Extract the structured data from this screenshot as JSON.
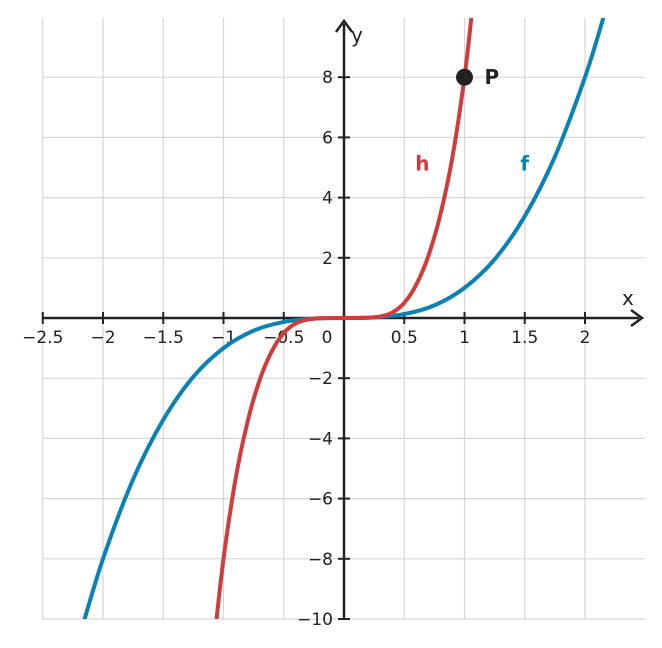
{
  "chart_data": {
    "type": "line",
    "xlabel": "x",
    "ylabel": "y",
    "xlim": [
      -2.5,
      2.5
    ],
    "ylim": [
      -10,
      10
    ],
    "grid": true,
    "x_ticks": [
      -2.5,
      -2,
      -1.5,
      -1,
      -0.5,
      0.5,
      1,
      1.5,
      2
    ],
    "x_tick_labels": [
      "−2.5",
      "−2",
      "−1.5",
      "−1",
      "−0.5",
      "0.5",
      "1",
      "1.5",
      "2"
    ],
    "y_ticks": [
      -10,
      -8,
      -6,
      -4,
      -2,
      2,
      4,
      6,
      8
    ],
    "y_tick_labels": [
      "−10",
      "−8",
      "−6",
      "−4",
      "−2",
      "2",
      "4",
      "6",
      "8"
    ],
    "origin_label": "0",
    "series": [
      {
        "name": "f",
        "color": "#0a82b4",
        "x": [
          -2.2,
          -2.0,
          -1.75,
          -1.5,
          -1.25,
          -1.0,
          -0.75,
          -0.5,
          -0.25,
          0,
          0.25,
          0.5,
          0.75,
          1.0,
          1.25,
          1.5,
          1.75,
          2.0,
          2.15
        ],
        "y": [
          -10.65,
          -8.0,
          -5.36,
          -3.38,
          -1.95,
          -1.0,
          -0.42,
          -0.13,
          -0.02,
          0,
          0.02,
          0.13,
          0.42,
          1.0,
          1.95,
          3.38,
          5.36,
          8.0,
          9.94
        ]
      },
      {
        "name": "h",
        "color": "#d03c3c",
        "x": [
          -1.07,
          -1.0,
          -0.9,
          -0.8,
          -0.7,
          -0.6,
          -0.5,
          -0.4,
          -0.3,
          -0.2,
          -0.1,
          0,
          0.1,
          0.2,
          0.3,
          0.4,
          0.5,
          0.6,
          0.7,
          0.8,
          0.9,
          1.0,
          1.07
        ],
        "y": [
          -10.46,
          -8.0,
          -5.35,
          -3.44,
          -2.06,
          -1.11,
          -0.5,
          -0.18,
          -0.05,
          -0.01,
          0,
          0,
          0,
          0.01,
          0.05,
          0.18,
          0.5,
          1.11,
          2.06,
          3.44,
          5.35,
          8.0,
          10.46
        ]
      }
    ],
    "curve_labels": [
      {
        "text": "h",
        "x": 0.65,
        "y": 4.9,
        "color": "#d03c3c"
      },
      {
        "text": "f",
        "x": 1.5,
        "y": 4.9,
        "color": "#0a82b4"
      }
    ],
    "points": [
      {
        "label": "P",
        "x": 1,
        "y": 8
      }
    ]
  }
}
